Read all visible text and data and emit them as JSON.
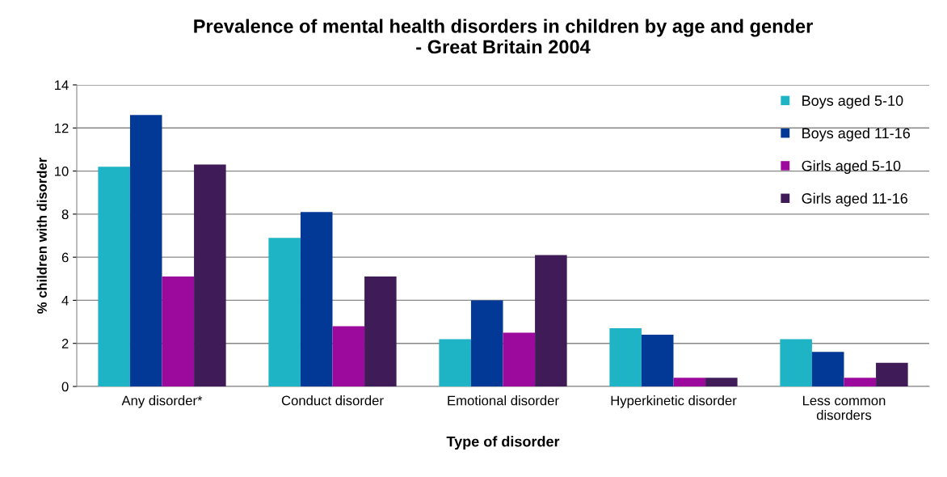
{
  "chart_data": {
    "type": "bar",
    "title": "Prevalence of mental health disorders in children by age and gender\n- Great Britain 2004",
    "xlabel": "Type of disorder",
    "ylabel": "% children with disorder",
    "categories": [
      "Any disorder*",
      "Conduct disorder",
      "Emotional disorder",
      "Hyperkinetic disorder",
      "Less common\ndisorders"
    ],
    "series": [
      {
        "name": "Boys aged 5-10",
        "color": "#1fb3c6",
        "values": [
          10.2,
          6.9,
          2.2,
          2.7,
          2.2
        ]
      },
      {
        "name": "Boys aged 11-16",
        "color": "#023896",
        "values": [
          12.6,
          8.1,
          4.0,
          2.4,
          1.6
        ]
      },
      {
        "name": "Girls aged 5-10",
        "color": "#9b0a9c",
        "values": [
          5.1,
          2.8,
          2.5,
          0.4,
          0.4
        ]
      },
      {
        "name": "Girls aged 11-16",
        "color": "#3f1c57",
        "values": [
          10.3,
          5.1,
          6.1,
          0.4,
          1.1
        ]
      }
    ],
    "ylim": [
      0,
      14
    ],
    "yticks": [
      0,
      2,
      4,
      6,
      8,
      10,
      12,
      14
    ],
    "grid": "y",
    "legend": "top right"
  }
}
